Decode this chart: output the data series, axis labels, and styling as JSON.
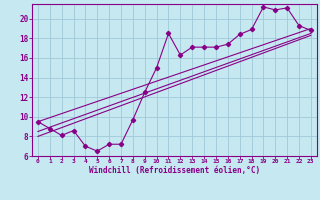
{
  "xlabel": "Windchill (Refroidissement éolien,°C)",
  "bg_color": "#c6e8f0",
  "grid_color": "#a0c8d8",
  "line_color": "#880088",
  "xlim": [
    -0.5,
    23.5
  ],
  "ylim": [
    6,
    21.5
  ],
  "xticks": [
    0,
    1,
    2,
    3,
    4,
    5,
    6,
    7,
    8,
    9,
    10,
    11,
    12,
    13,
    14,
    15,
    16,
    17,
    18,
    19,
    20,
    21,
    22,
    23
  ],
  "yticks": [
    6,
    8,
    10,
    12,
    14,
    16,
    18,
    20
  ],
  "scatter_x": [
    0,
    1,
    2,
    3,
    4,
    5,
    6,
    7,
    8,
    9,
    10,
    11,
    12,
    13,
    14,
    15,
    16,
    17,
    18,
    19,
    20,
    21,
    22,
    23
  ],
  "scatter_y": [
    9.5,
    8.8,
    8.1,
    8.6,
    7.0,
    6.5,
    7.2,
    7.2,
    9.7,
    12.5,
    15.0,
    18.5,
    16.3,
    17.1,
    17.1,
    17.1,
    17.4,
    18.4,
    18.9,
    21.2,
    20.9,
    21.1,
    19.3,
    18.8
  ],
  "line1_x": [
    0,
    23
  ],
  "line1_y": [
    8.5,
    18.5
  ],
  "line2_x": [
    0,
    23
  ],
  "line2_y": [
    9.5,
    19.0
  ],
  "line3_x": [
    0,
    23
  ],
  "line3_y": [
    8.0,
    18.3
  ]
}
